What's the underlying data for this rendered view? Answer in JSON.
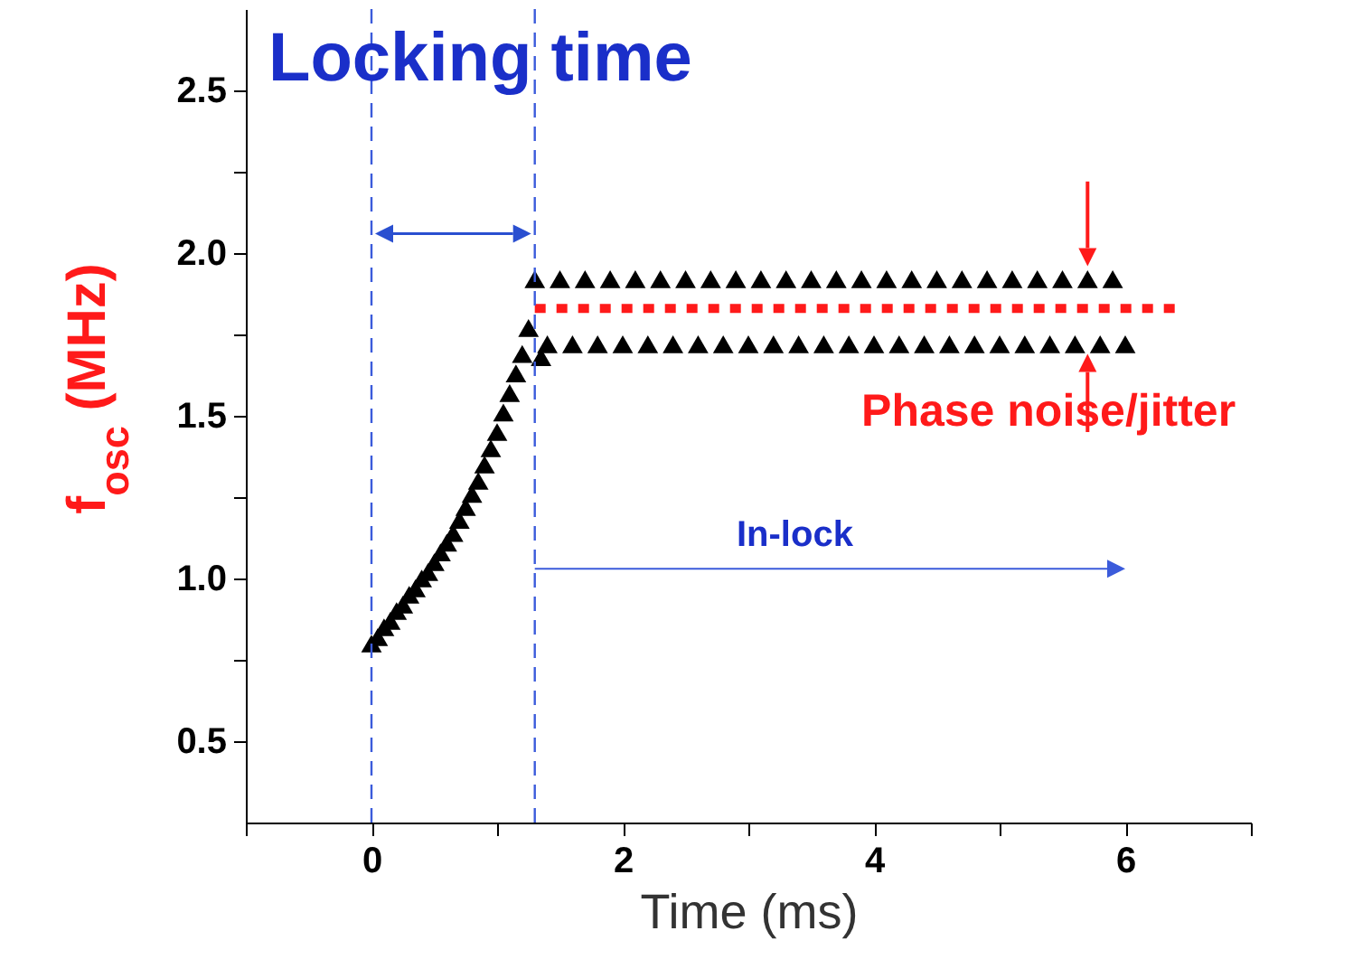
{
  "chart_data": {
    "type": "scatter",
    "xlabel": "Time (ms)",
    "ylabel": "f$_{osc}$ (MHz)",
    "xlim": [
      -1,
      7
    ],
    "xticks": [
      {
        "value": -1,
        "label": null
      },
      0,
      {
        "value": 1,
        "label": null
      },
      2,
      {
        "value": 3,
        "label": null
      },
      4,
      {
        "value": 5,
        "label": null
      },
      6,
      {
        "value": 7,
        "label": null
      }
    ],
    "ylim": [
      0.25,
      2.75
    ],
    "yticks": [
      0.5,
      {
        "value": 0.75,
        "label": null
      },
      {
        "value": 1,
        "label": "1.0"
      },
      {
        "value": 1.25,
        "label": null
      },
      1.5,
      {
        "value": 1.75,
        "label": null
      },
      {
        "value": 2,
        "label": "2.0"
      },
      {
        "value": 2.25,
        "label": null
      },
      2.5
    ],
    "marker": "triangle",
    "series": [
      {
        "color": "#000000",
        "x": [
          0,
          0.05,
          0.1,
          0.15,
          0.2,
          0.25,
          0.3,
          0.35,
          0.4,
          0.45,
          0.5,
          0.55,
          0.6,
          0.65,
          0.7,
          0.75,
          0.8,
          0.85,
          0.9,
          0.95,
          1.0,
          1.05,
          1.1,
          1.15,
          1.2,
          1.25,
          1.3,
          1.35,
          1.4,
          1.5,
          1.6,
          1.7,
          1.8,
          1.9,
          2.0,
          2.1,
          2.2,
          2.3,
          2.4,
          2.5,
          2.6,
          2.7,
          2.8,
          2.9,
          3.0,
          3.1,
          3.2,
          3.3,
          3.4,
          3.5,
          3.6,
          3.7,
          3.8,
          3.9,
          4.0,
          4.1,
          4.2,
          4.3,
          4.4,
          4.5,
          4.6,
          4.7,
          4.8,
          4.9,
          5.0,
          5.1,
          5.2,
          5.3,
          5.4,
          5.5,
          5.6,
          5.7,
          5.8,
          5.9,
          6.0
        ],
        "values": [
          0.8,
          0.82,
          0.85,
          0.87,
          0.9,
          0.92,
          0.95,
          0.97,
          1.0,
          1.02,
          1.05,
          1.08,
          1.11,
          1.14,
          1.18,
          1.22,
          1.26,
          1.3,
          1.35,
          1.4,
          1.45,
          1.51,
          1.57,
          1.63,
          1.69,
          1.77,
          1.92,
          1.68,
          1.72,
          1.92,
          1.72,
          1.92,
          1.72,
          1.92,
          1.72,
          1.92,
          1.72,
          1.92,
          1.72,
          1.92,
          1.72,
          1.92,
          1.72,
          1.92,
          1.72,
          1.92,
          1.72,
          1.92,
          1.72,
          1.92,
          1.72,
          1.92,
          1.72,
          1.92,
          1.72,
          1.92,
          1.72,
          1.92,
          1.72,
          1.92,
          1.72,
          1.92,
          1.72,
          1.92,
          1.72,
          1.92,
          1.72,
          1.92,
          1.72,
          1.92,
          1.72,
          1.92,
          1.72,
          1.92,
          1.72
        ]
      },
      {
        "type": "line",
        "color": "#ff1a1a",
        "marker": "none",
        "line_style": "dotted",
        "x": [
          1.3,
          6.4
        ],
        "values": [
          1.83,
          1.83
        ]
      }
    ],
    "ref_lines": [
      {
        "axis": "x",
        "value": 0,
        "color": "#3b5bdb",
        "line_style": "dashed"
      },
      {
        "axis": "x",
        "value": 1.3,
        "color": "#3b5bdb",
        "line_style": "dashed"
      }
    ],
    "annotations": [
      "Locking time",
      "In-lock",
      "Phase noise/jitter"
    ]
  }
}
